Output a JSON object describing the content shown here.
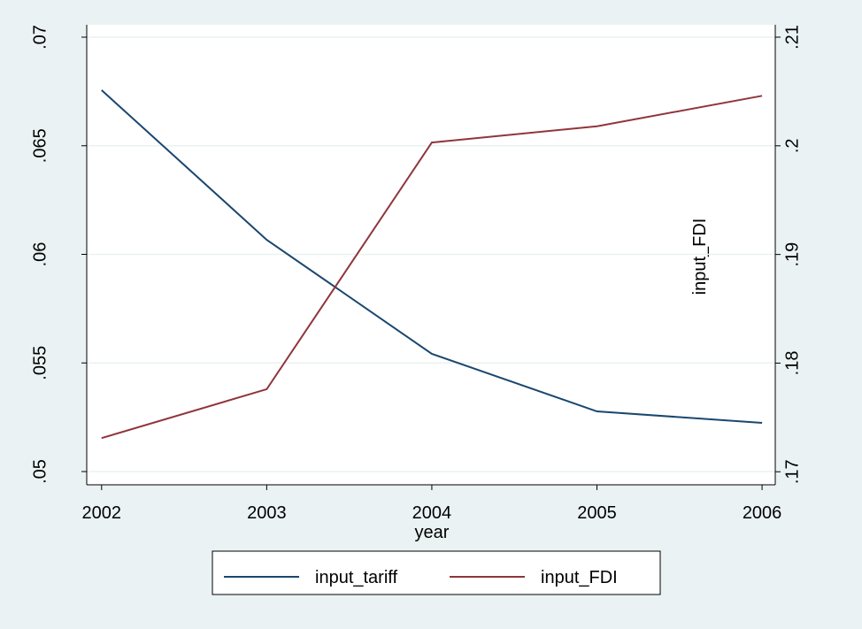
{
  "chart_data": {
    "type": "line",
    "x_label": "year",
    "y2_label": "input_FDI",
    "x": [
      2002,
      2003,
      2004,
      2005,
      2006
    ],
    "xlim": [
      2001.91,
      2006.08
    ],
    "xticks": [
      2002,
      2003,
      2004,
      2005,
      2006
    ],
    "ylim": [
      0.04939,
      0.07
    ],
    "yticks": [
      {
        "value": 0.05,
        "label": ".05"
      },
      {
        "value": 0.055,
        "label": ".055"
      },
      {
        "value": 0.06,
        "label": ".06"
      },
      {
        "value": 0.065,
        "label": ".065"
      },
      {
        "value": 0.07,
        "label": ".07"
      }
    ],
    "y2lim": [
      0.1688,
      0.21
    ],
    "y2ticks": [
      {
        "value": 0.17,
        "label": ".17"
      },
      {
        "value": 0.18,
        "label": ".18"
      },
      {
        "value": 0.19,
        "label": ".19"
      },
      {
        "value": 0.2,
        "label": ".2"
      },
      {
        "value": 0.21,
        "label": ".21"
      }
    ],
    "grid": true,
    "series": [
      {
        "name": "input_tariff",
        "color": "#1a476f",
        "values": [
          0.06756,
          0.06067,
          0.05542,
          0.05277,
          0.05224
        ]
      },
      {
        "name": "input_FDI",
        "color": "#90353b",
        "axis": "y2",
        "values": [
          0.1731,
          0.1776,
          0.2003,
          0.2018,
          0.2046
        ]
      }
    ]
  }
}
